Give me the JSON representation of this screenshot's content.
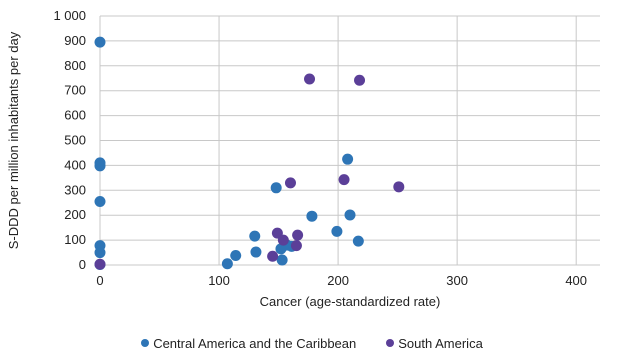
{
  "chart_data": {
    "type": "scatter",
    "title": "",
    "xlabel": "Cancer (age-standardized rate)",
    "ylabel": "S-DDD per million inhabitants per day",
    "xlim": [
      0,
      420
    ],
    "ylim": [
      0,
      1000
    ],
    "xticks": [
      0,
      100,
      200,
      300,
      400
    ],
    "xtick_labels": [
      "0",
      "100",
      "200",
      "300",
      "400"
    ],
    "yticks": [
      0,
      100,
      200,
      300,
      400,
      500,
      600,
      700,
      800,
      900,
      1000
    ],
    "ytick_labels": [
      "0",
      "100",
      "200",
      "300",
      "400",
      "500",
      "600",
      "700",
      "800",
      "900",
      "1 000"
    ],
    "grid": "both",
    "legend_position": "bottom",
    "series": [
      {
        "name": "Central America and the Caribbean",
        "color": "#2e75b6",
        "points": [
          [
            0,
            895
          ],
          [
            0,
            410
          ],
          [
            0,
            398
          ],
          [
            0,
            255
          ],
          [
            0,
            78
          ],
          [
            0,
            50
          ],
          [
            0,
            2
          ],
          [
            107,
            5
          ],
          [
            114,
            38
          ],
          [
            130,
            116
          ],
          [
            131,
            52
          ],
          [
            148,
            310
          ],
          [
            152,
            65
          ],
          [
            153,
            20
          ],
          [
            157,
            80
          ],
          [
            161,
            75
          ],
          [
            178,
            196
          ],
          [
            199,
            135
          ],
          [
            208,
            425
          ],
          [
            210,
            201
          ],
          [
            217,
            96
          ]
        ]
      },
      {
        "name": "South America",
        "color": "#5b3f98",
        "points": [
          [
            0,
            3
          ],
          [
            145,
            35
          ],
          [
            149,
            128
          ],
          [
            154,
            100
          ],
          [
            160,
            330
          ],
          [
            165,
            78
          ],
          [
            166,
            120
          ],
          [
            176,
            747
          ],
          [
            205,
            343
          ],
          [
            218,
            742
          ],
          [
            251,
            314
          ]
        ]
      }
    ]
  }
}
